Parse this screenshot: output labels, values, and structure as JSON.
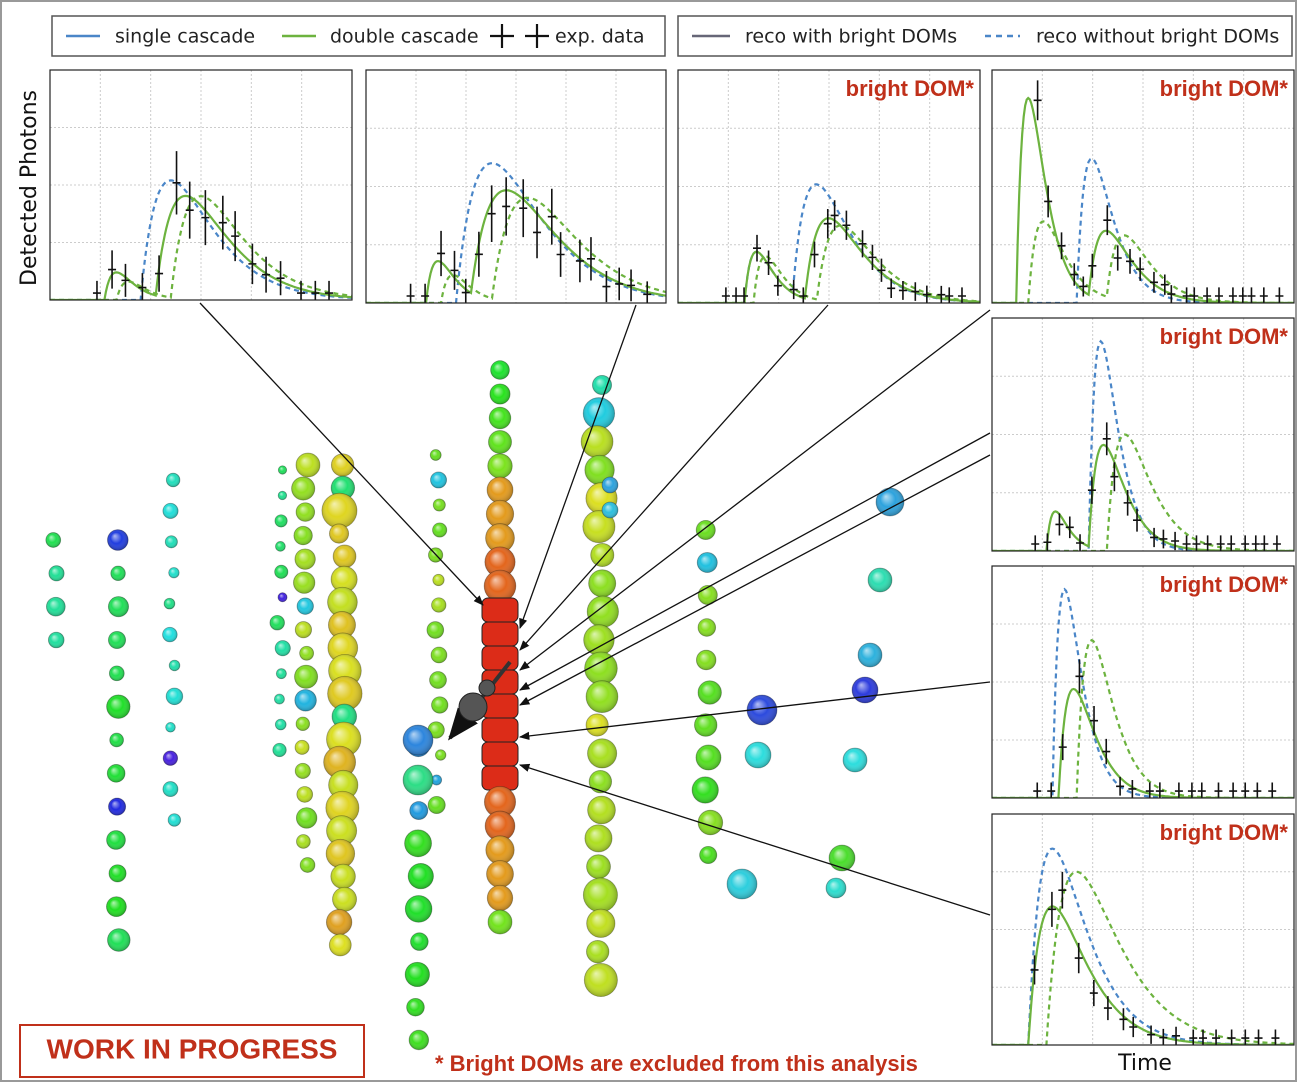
{
  "legend": {
    "left": [
      "single cascade",
      "double cascade",
      "exp. data"
    ],
    "right": [
      "reco with bright DOMs",
      "reco without bright DOMs"
    ]
  },
  "y_axis_label": "Detected Photons",
  "x_axis_label": "Time",
  "panel_labels": [
    "bright DOM*",
    "bright DOM*",
    "bright DOM*",
    "bright DOM*",
    "bright DOM*"
  ],
  "stamp": "WORK IN PROGRESS",
  "footnote": "* Bright DOMs are excluded from this analysis"
}
